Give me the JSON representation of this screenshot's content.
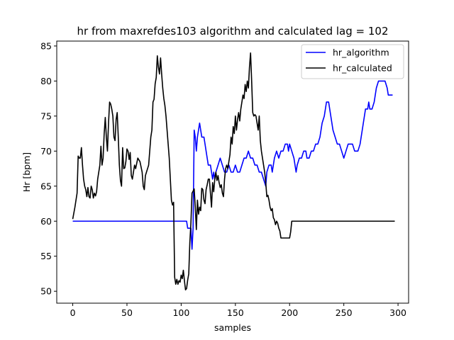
{
  "chart_data": {
    "type": "line",
    "title": "hr from maxrefdes103 algorithm and calculated lag = 102",
    "xlabel": "samples",
    "ylabel": "Hr [bpm]",
    "xlim": [
      -14.75,
      309.75
    ],
    "ylim": [
      48.3,
      85.7
    ],
    "xticks": [
      0,
      50,
      100,
      150,
      200,
      250,
      300
    ],
    "yticks": [
      50,
      55,
      60,
      65,
      70,
      75,
      80,
      85
    ],
    "grid": false,
    "legend_position": "top-right",
    "series": [
      {
        "name": "hr_algorithm",
        "color": "#0000ff",
        "points": [
          [
            0,
            60
          ],
          [
            105,
            60
          ],
          [
            106,
            59
          ],
          [
            109,
            59
          ],
          [
            110,
            56
          ],
          [
            111,
            59
          ],
          [
            112,
            73
          ],
          [
            113,
            72
          ],
          [
            114,
            70
          ],
          [
            115,
            72
          ],
          [
            116,
            73
          ],
          [
            117,
            74
          ],
          [
            118,
            73
          ],
          [
            119,
            72
          ],
          [
            121,
            72
          ],
          [
            122,
            71
          ],
          [
            123,
            70
          ],
          [
            124,
            69
          ],
          [
            125,
            68
          ],
          [
            127,
            68
          ],
          [
            128,
            67
          ],
          [
            129,
            66
          ],
          [
            130,
            67
          ],
          [
            131,
            66
          ],
          [
            132,
            67
          ],
          [
            134,
            68
          ],
          [
            136,
            69
          ],
          [
            138,
            68
          ],
          [
            140,
            67
          ],
          [
            142,
            67
          ],
          [
            144,
            68
          ],
          [
            146,
            67
          ],
          [
            148,
            67
          ],
          [
            150,
            68
          ],
          [
            152,
            67
          ],
          [
            154,
            67
          ],
          [
            156,
            68
          ],
          [
            158,
            69
          ],
          [
            160,
            69
          ],
          [
            162,
            70
          ],
          [
            164,
            69
          ],
          [
            166,
            69
          ],
          [
            168,
            68
          ],
          [
            170,
            68
          ],
          [
            172,
            67
          ],
          [
            174,
            67
          ],
          [
            176,
            66
          ],
          [
            178,
            65
          ],
          [
            179,
            67
          ],
          [
            181,
            68
          ],
          [
            183,
            68
          ],
          [
            184,
            67
          ],
          [
            186,
            69
          ],
          [
            188,
            70
          ],
          [
            190,
            69
          ],
          [
            192,
            70
          ],
          [
            194,
            70
          ],
          [
            196,
            71
          ],
          [
            198,
            71
          ],
          [
            199,
            70
          ],
          [
            200,
            71
          ],
          [
            202,
            70
          ],
          [
            204,
            69
          ],
          [
            205,
            68
          ],
          [
            206,
            67
          ],
          [
            207,
            68
          ],
          [
            209,
            69
          ],
          [
            211,
            69
          ],
          [
            213,
            70
          ],
          [
            215,
            70
          ],
          [
            216,
            69
          ],
          [
            218,
            69
          ],
          [
            220,
            70
          ],
          [
            222,
            70
          ],
          [
            224,
            71
          ],
          [
            226,
            71
          ],
          [
            228,
            72
          ],
          [
            230,
            74
          ],
          [
            232,
            75
          ],
          [
            234,
            77
          ],
          [
            236,
            77
          ],
          [
            238,
            75
          ],
          [
            240,
            73
          ],
          [
            242,
            72
          ],
          [
            244,
            71
          ],
          [
            246,
            71
          ],
          [
            248,
            70
          ],
          [
            250,
            69
          ],
          [
            252,
            70
          ],
          [
            254,
            71
          ],
          [
            258,
            71
          ],
          [
            260,
            70
          ],
          [
            263,
            70
          ],
          [
            265,
            71
          ],
          [
            267,
            73
          ],
          [
            268,
            74
          ],
          [
            270,
            76
          ],
          [
            272,
            76
          ],
          [
            273,
            77
          ],
          [
            274,
            76
          ],
          [
            276,
            76
          ],
          [
            278,
            77
          ],
          [
            280,
            79
          ],
          [
            282,
            80
          ],
          [
            284,
            80
          ],
          [
            286,
            80
          ],
          [
            288,
            80
          ],
          [
            290,
            79
          ],
          [
            291,
            78
          ],
          [
            295,
            78
          ]
        ]
      },
      {
        "name": "hr_calculated",
        "color": "#000000",
        "points": [
          [
            0,
            60.3
          ],
          [
            2,
            62
          ],
          [
            4,
            64
          ],
          [
            5,
            69.3
          ],
          [
            6,
            69
          ],
          [
            7,
            69
          ],
          [
            8,
            70.5
          ],
          [
            9,
            68
          ],
          [
            10,
            66
          ],
          [
            11,
            65
          ],
          [
            12,
            64.5
          ],
          [
            13,
            63.5
          ],
          [
            14,
            64.8
          ],
          [
            15,
            63.5
          ],
          [
            16,
            63.3
          ],
          [
            17,
            65
          ],
          [
            18,
            64.5
          ],
          [
            19,
            63.3
          ],
          [
            20,
            64
          ],
          [
            21,
            63.6
          ],
          [
            22,
            64.2
          ],
          [
            23,
            66
          ],
          [
            24,
            67
          ],
          [
            25,
            68
          ],
          [
            26,
            70.7
          ],
          [
            27,
            68
          ],
          [
            28,
            69
          ],
          [
            29,
            72.5
          ],
          [
            30,
            74.8
          ],
          [
            31,
            72
          ],
          [
            32,
            70
          ],
          [
            33,
            74
          ],
          [
            34,
            77
          ],
          [
            35,
            76.7
          ],
          [
            36,
            76
          ],
          [
            37,
            75
          ],
          [
            38,
            72
          ],
          [
            39,
            71.5
          ],
          [
            40,
            74.5
          ],
          [
            41,
            75.5
          ],
          [
            42,
            72
          ],
          [
            43,
            68
          ],
          [
            44,
            65.8
          ],
          [
            45,
            65
          ],
          [
            46,
            70.5
          ],
          [
            47,
            67.5
          ],
          [
            48,
            67.6
          ],
          [
            49,
            68.5
          ],
          [
            50,
            70.3
          ],
          [
            51,
            70
          ],
          [
            52,
            68.8
          ],
          [
            53,
            69.8
          ],
          [
            54,
            66.5
          ],
          [
            55,
            66
          ],
          [
            56,
            67
          ],
          [
            57,
            68
          ],
          [
            58,
            67.5
          ],
          [
            60,
            69
          ],
          [
            62,
            68.5
          ],
          [
            64,
            67
          ],
          [
            65,
            65
          ],
          [
            66,
            64.5
          ],
          [
            67,
            66.5
          ],
          [
            68,
            67
          ],
          [
            69,
            67.5
          ],
          [
            70,
            68
          ],
          [
            71,
            70
          ],
          [
            72,
            72
          ],
          [
            73,
            73
          ],
          [
            74,
            77
          ],
          [
            75,
            77.4
          ],
          [
            76,
            79.6
          ],
          [
            77,
            80.5
          ],
          [
            78,
            83.6
          ],
          [
            79,
            82
          ],
          [
            80,
            81
          ],
          [
            81,
            83.3
          ],
          [
            82,
            81
          ],
          [
            83,
            79
          ],
          [
            84,
            77.5
          ],
          [
            85,
            76.5
          ],
          [
            86,
            75
          ],
          [
            87,
            73
          ],
          [
            88,
            71
          ],
          [
            89,
            69
          ],
          [
            90,
            66
          ],
          [
            91,
            63
          ],
          [
            92,
            62.3
          ],
          [
            93,
            62.7
          ],
          [
            94,
            52
          ],
          [
            95,
            51
          ],
          [
            96,
            51.7
          ],
          [
            97,
            51
          ],
          [
            98,
            51.5
          ],
          [
            99,
            51.3
          ],
          [
            100,
            52.3
          ],
          [
            101,
            51.8
          ],
          [
            102,
            53
          ],
          [
            103,
            51.5
          ],
          [
            104,
            50.2
          ],
          [
            105,
            50.4
          ],
          [
            106,
            51.6
          ],
          [
            107,
            52.5
          ],
          [
            108,
            57
          ],
          [
            109,
            59.8
          ],
          [
            110,
            64
          ],
          [
            111,
            64.3
          ],
          [
            112,
            64.6
          ],
          [
            113,
            62
          ],
          [
            114,
            58.8
          ],
          [
            115,
            63
          ],
          [
            116,
            61
          ],
          [
            117,
            62
          ],
          [
            118,
            61.5
          ],
          [
            119,
            64.7
          ],
          [
            120,
            64.5
          ],
          [
            121,
            63
          ],
          [
            122,
            62.5
          ],
          [
            123,
            64.5
          ],
          [
            124,
            65.2
          ],
          [
            125,
            66
          ],
          [
            126,
            66
          ],
          [
            127,
            64
          ],
          [
            128,
            62
          ],
          [
            129,
            65.5
          ],
          [
            130,
            64.2
          ],
          [
            131,
            66
          ],
          [
            132,
            67
          ],
          [
            133,
            65.8
          ],
          [
            134,
            66.5
          ],
          [
            135,
            65.5
          ],
          [
            136,
            64.8
          ],
          [
            137,
            65.2
          ],
          [
            138,
            64
          ],
          [
            139,
            63.5
          ],
          [
            140,
            66
          ],
          [
            141,
            67.5
          ],
          [
            142,
            68
          ],
          [
            143,
            67.5
          ],
          [
            144,
            68.5
          ],
          [
            145,
            69.5
          ],
          [
            146,
            72
          ],
          [
            147,
            71
          ],
          [
            148,
            73.5
          ],
          [
            149,
            72.5
          ],
          [
            150,
            75
          ],
          [
            151,
            73
          ],
          [
            152,
            74.5
          ],
          [
            153,
            75.5
          ],
          [
            154,
            74.3
          ],
          [
            155,
            76
          ],
          [
            156,
            77
          ],
          [
            157,
            78
          ],
          [
            158,
            77.5
          ],
          [
            159,
            79.5
          ],
          [
            160,
            78.5
          ],
          [
            161,
            80
          ],
          [
            162,
            79
          ],
          [
            163,
            82
          ],
          [
            164,
            84
          ],
          [
            165,
            80
          ],
          [
            166,
            75.5
          ],
          [
            167,
            75
          ],
          [
            168,
            75.2
          ],
          [
            169,
            75
          ],
          [
            170,
            74
          ],
          [
            171,
            73
          ],
          [
            172,
            75
          ],
          [
            173,
            71.5
          ],
          [
            174,
            70
          ],
          [
            175,
            69
          ],
          [
            176,
            68
          ],
          [
            177,
            67
          ],
          [
            178,
            65.5
          ],
          [
            179,
            63.5
          ],
          [
            180,
            63.7
          ],
          [
            181,
            63
          ],
          [
            182,
            62
          ],
          [
            183,
            61.5
          ],
          [
            184,
            61.8
          ],
          [
            185,
            60.5
          ],
          [
            186,
            60.2
          ],
          [
            187,
            59.5
          ],
          [
            188,
            60
          ],
          [
            189,
            59.7
          ],
          [
            190,
            59
          ],
          [
            191,
            58.6
          ],
          [
            192,
            57.6
          ],
          [
            200,
            57.6
          ],
          [
            201,
            58.5
          ],
          [
            202,
            60
          ],
          [
            297,
            60
          ]
        ]
      }
    ]
  }
}
